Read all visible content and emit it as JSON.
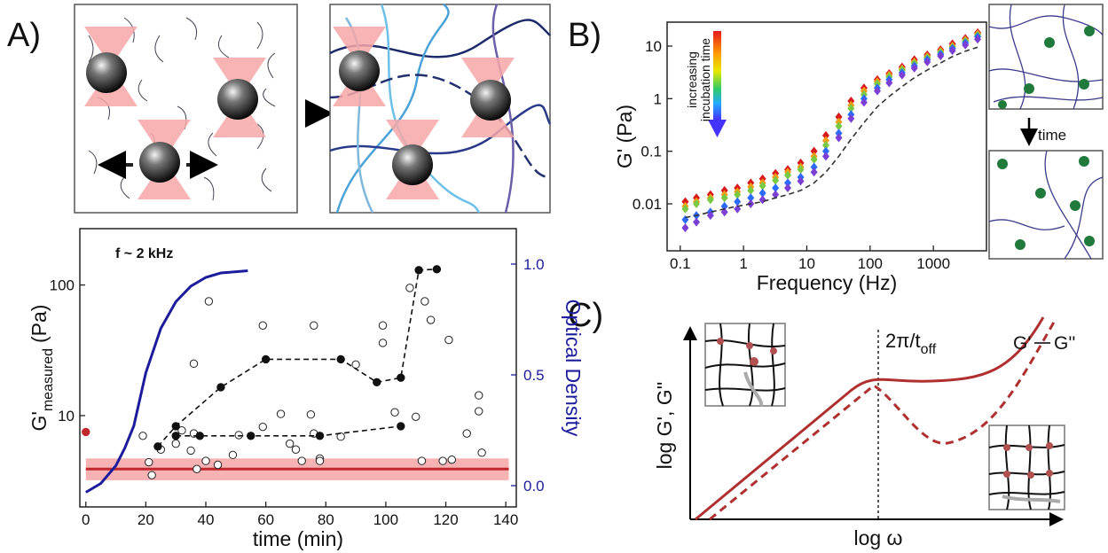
{
  "panels": {
    "a_label": "A)",
    "b_label": "B)",
    "c_label": "C)"
  },
  "inset_label": "time",
  "chart_data": [
    {
      "type": "scatter",
      "annotation": "f ~ 2 kHz",
      "xlabel": "time (min)",
      "ylabel": [
        "G'",
        "measured",
        "(Pa)"
      ],
      "y2label": "Optical Density",
      "xlim": [
        -2,
        143.5
      ],
      "xticks": [
        0,
        20,
        40,
        60,
        80,
        100,
        120,
        140
      ],
      "ylim": [
        2,
        270
      ],
      "yscale": "log",
      "yticks": [
        10,
        100
      ],
      "y2lim": [
        -0.096,
        1.16
      ],
      "y2ticks": [
        {
          "value": 0,
          "label": "0.0"
        },
        {
          "value": 0.5,
          "label": "0.5"
        },
        {
          "value": 1,
          "label": "1.0"
        }
      ],
      "y2color": "#1c1c9c",
      "series": [
        {
          "kind": "band",
          "color": "#f7b3b3",
          "x": [
            0,
            141
          ],
          "values": [
            3.2,
            4.7
          ]
        },
        {
          "line": "solid",
          "color": "#c0282d",
          "x": [
            0,
            141
          ],
          "values": [
            3.9,
            3.9
          ]
        },
        {
          "line": "solid",
          "axis": "y2",
          "color": "#1c1c9c",
          "x": [
            0,
            5,
            10,
            13,
            16,
            20,
            25,
            30,
            35,
            40,
            45,
            54
          ],
          "values": [
            -0.03,
            0.01,
            0.09,
            0.17,
            0.27,
            0.51,
            0.71,
            0.83,
            0.9,
            0.94,
            0.96,
            0.97
          ]
        },
        {
          "marker": "open",
          "color": "#222",
          "x": [
            19,
            21,
            22,
            25,
            30,
            32,
            35,
            36,
            36,
            37,
            40,
            41,
            44,
            49,
            51,
            59,
            59,
            65,
            68,
            70,
            72,
            75,
            76,
            76,
            78,
            78,
            85,
            90,
            99,
            99,
            103,
            108,
            110,
            112,
            113,
            115,
            119,
            121,
            122,
            127,
            131,
            131,
            132
          ],
          "values": [
            7,
            4.4,
            3.5,
            5.5,
            6.1,
            7.7,
            5.4,
            25,
            7.3,
            3.9,
            4.5,
            75,
            4.2,
            5,
            7.1,
            49,
            8.2,
            10.3,
            6.1,
            5.5,
            4.5,
            10.2,
            49,
            7.3,
            4.7,
            4.5,
            6.9,
            24.6,
            49,
            36,
            10.6,
            95,
            9.8,
            4.5,
            75,
            54,
            4.5,
            38,
            4.6,
            7.3,
            14.3,
            10.8,
            5.2
          ]
        },
        {
          "line": "dashed",
          "marker": "filled",
          "color": "#111",
          "x": [
            24,
            30,
            45,
            60,
            85,
            97,
            105,
            111,
            117
          ],
          "values": [
            5.8,
            8.3,
            16.5,
            27,
            27,
            18,
            19.5,
            130,
            132
          ]
        },
        {
          "line": "dashed",
          "marker": "filled",
          "color": "#111",
          "x": [
            30,
            38,
            55,
            78,
            105
          ],
          "values": [
            7,
            7,
            7,
            7,
            8.3
          ]
        },
        {
          "marker": "filled",
          "color": "#c0282d",
          "x": [
            0
          ],
          "values": [
            7.5
          ]
        }
      ]
    },
    {
      "type": "line",
      "xlabel": "Frequency (Hz)",
      "ylabel": "G' (Pa)",
      "annotation": [
        "increasing",
        "incubation time"
      ],
      "xscale": "log",
      "yscale": "log",
      "xlim": [
        0.062,
        6900
      ],
      "ylim": [
        0.00128,
        28.5
      ],
      "xticks": [
        0.1,
        1,
        10,
        100,
        1000
      ],
      "yticks": [
        0.01,
        0.1,
        1,
        10
      ],
      "x": [
        0.12,
        0.18,
        0.3,
        0.5,
        0.8,
        1.3,
        2,
        3.2,
        5,
        8,
        13,
        20,
        32,
        50,
        80,
        130,
        200,
        320,
        500,
        800,
        1300,
        2000,
        3200,
        5000
      ],
      "series": [
        {
          "marker": "diamond",
          "color": "#d7191c",
          "values": [
            0.011,
            0.013,
            0.015,
            0.018,
            0.02,
            0.025,
            0.03,
            0.038,
            0.045,
            0.06,
            0.1,
            0.2,
            0.45,
            0.9,
            1.6,
            2.3,
            3,
            4,
            5.5,
            6.8,
            8.5,
            11,
            14,
            18
          ]
        },
        {
          "marker": "diamond",
          "color": "#f39c12",
          "values": [
            0.009,
            0.011,
            0.013,
            0.015,
            0.017,
            0.021,
            0.025,
            0.032,
            0.04,
            0.05,
            0.08,
            0.16,
            0.36,
            0.75,
            1.4,
            2.1,
            2.8,
            3.7,
            5,
            6.3,
            8,
            10,
            13,
            17
          ]
        },
        {
          "marker": "diamond",
          "color": "#7ac943",
          "values": [
            0.008,
            0.01,
            0.012,
            0.013,
            0.015,
            0.018,
            0.022,
            0.028,
            0.035,
            0.045,
            0.07,
            0.13,
            0.3,
            0.65,
            1.2,
            1.9,
            2.6,
            3.5,
            4.7,
            6,
            7.6,
            9.5,
            12.5,
            16
          ]
        },
        {
          "marker": "diamond",
          "color": "#2b6cff",
          "values": [
            0.005,
            0.006,
            0.007,
            0.009,
            0.011,
            0.013,
            0.016,
            0.02,
            0.025,
            0.032,
            0.05,
            0.1,
            0.22,
            0.5,
            1,
            1.6,
            2.3,
            3.1,
            4.2,
            5.5,
            7,
            9,
            11.5,
            15
          ]
        },
        {
          "marker": "diamond",
          "color": "#7b3fd6",
          "values": [
            0.0035,
            0.0045,
            0.006,
            0.007,
            0.008,
            0.01,
            0.012,
            0.015,
            0.02,
            0.027,
            0.04,
            0.08,
            0.18,
            0.42,
            0.85,
            1.4,
            2,
            2.8,
            3.8,
            5,
            6.5,
            8.2,
            10.5,
            13.5
          ]
        },
        {
          "line": "dashed",
          "color": "#333",
          "values": [
            0.0055,
            0.006,
            0.007,
            0.008,
            0.009,
            0.01,
            0.011,
            0.013,
            0.015,
            0.018,
            0.025,
            0.04,
            0.08,
            0.17,
            0.35,
            0.7,
            1.1,
            1.7,
            2.5,
            3.5,
            4.8,
            6.3,
            8,
            9.5
          ]
        }
      ]
    }
  ],
  "panel_c": {
    "xlabel": "log ω",
    "ylabel": "log G', G''",
    "crossover": [
      "2π/t",
      "off"
    ],
    "legend": [
      "G'",
      "G''"
    ]
  }
}
